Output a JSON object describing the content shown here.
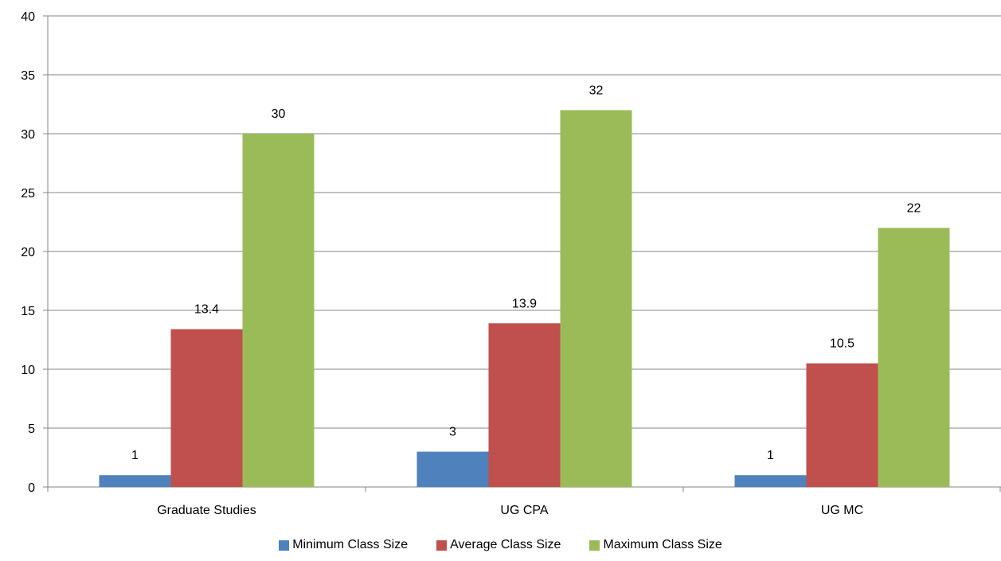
{
  "chart_data": {
    "type": "bar",
    "categories": [
      "Graduate Studies",
      "UG CPA",
      "UG MC"
    ],
    "series": [
      {
        "name": "Minimum Class Size",
        "values": [
          1,
          3,
          1
        ],
        "labels": [
          "1",
          "3",
          "1"
        ],
        "color": "#4f81bd"
      },
      {
        "name": "Average Class Size",
        "values": [
          13.4,
          13.9,
          10.5
        ],
        "labels": [
          "13.4",
          "13.9",
          "10.5"
        ],
        "color": "#c0504d"
      },
      {
        "name": "Maximum Class Size",
        "values": [
          30,
          32,
          22
        ],
        "labels": [
          "30",
          "32",
          "22"
        ],
        "color": "#9bbb59"
      }
    ],
    "ylim": [
      0,
      40
    ],
    "yticks": [
      0,
      5,
      10,
      15,
      20,
      25,
      30,
      35,
      40
    ],
    "grid": true,
    "legend_position": "bottom"
  }
}
